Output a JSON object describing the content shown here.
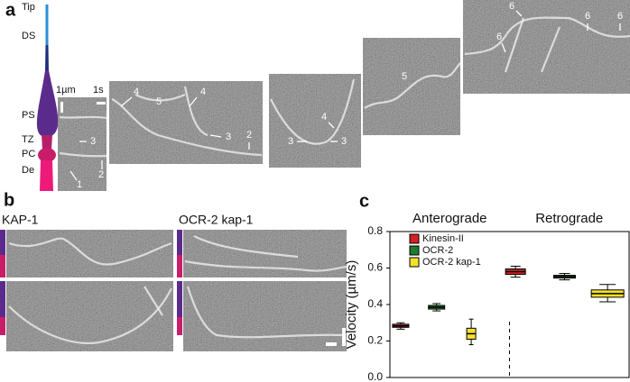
{
  "panel_a": {
    "label": "a",
    "regions": [
      "Tip",
      "DS",
      "PS",
      "TZ",
      "PC",
      "De"
    ],
    "scale_labels": [
      "1µm",
      "1s"
    ],
    "annotations": [
      "1",
      "2",
      "3",
      "4",
      "5",
      "4",
      "3",
      "2",
      "3",
      "3",
      "4",
      "5",
      "6",
      "6",
      "6",
      "6"
    ]
  },
  "panel_b": {
    "label": "b",
    "titles": [
      "KAP-1",
      "OCR-2 kap-1"
    ]
  },
  "chart_data": {
    "type": "box",
    "panel_label": "c",
    "ylabel": "Velocity (µm/s)",
    "groups": [
      "Anterograde",
      "Retrograde"
    ],
    "ylim": [
      0,
      0.8
    ],
    "yticks": [
      {
        "value": 0,
        "label": "0.0"
      },
      0.2,
      0.4,
      0.6,
      0.8
    ],
    "legend": "top-left",
    "series": [
      {
        "name": "Kinesin-II",
        "color": "#d42222",
        "boxes": [
          {
            "min": 0.265,
            "q1": 0.275,
            "median": 0.283,
            "q3": 0.292,
            "max": 0.3
          },
          {
            "min": 0.55,
            "q1": 0.565,
            "median": 0.58,
            "q3": 0.595,
            "max": 0.61
          }
        ]
      },
      {
        "name": "OCR-2",
        "color": "#1f7a2c",
        "boxes": [
          {
            "min": 0.365,
            "q1": 0.375,
            "median": 0.385,
            "q3": 0.395,
            "max": 0.405
          },
          {
            "min": 0.535,
            "q1": 0.545,
            "median": 0.553,
            "q3": 0.56,
            "max": 0.57
          }
        ]
      },
      {
        "name": "OCR-2 kap-1",
        "color": "#f4e12c",
        "boxes": [
          {
            "min": 0.18,
            "q1": 0.21,
            "median": 0.24,
            "q3": 0.27,
            "max": 0.32
          },
          {
            "min": 0.415,
            "q1": 0.44,
            "median": 0.46,
            "q3": 0.48,
            "max": 0.51
          }
        ]
      }
    ]
  }
}
